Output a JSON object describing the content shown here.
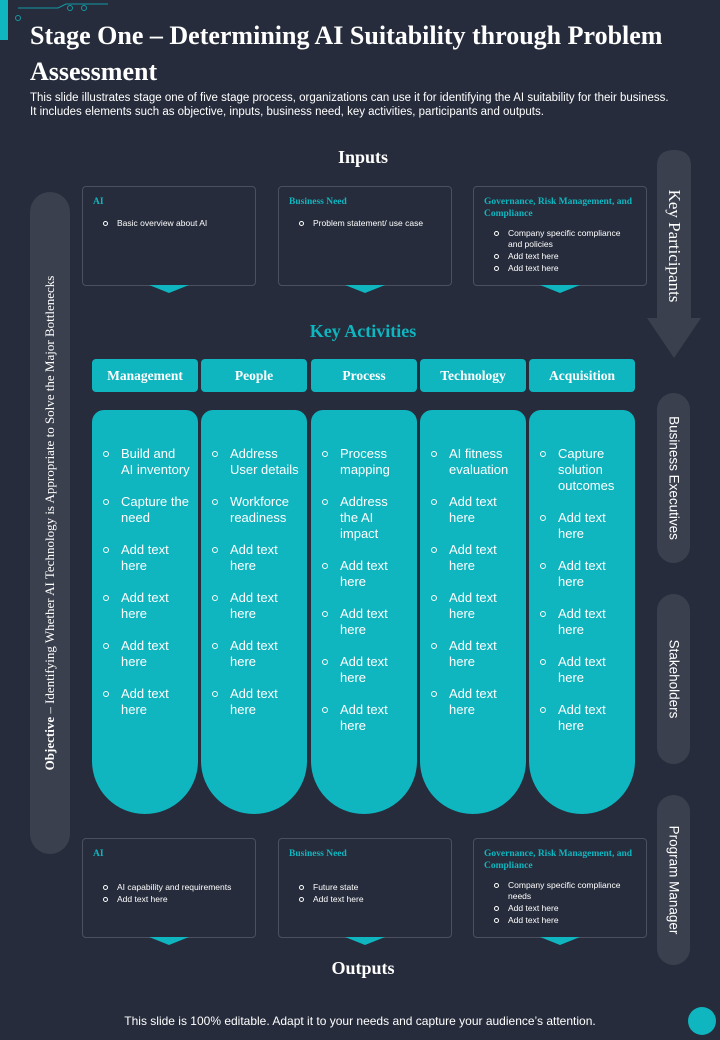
{
  "title": "Stage One – Determining AI Suitability through Problem Assessment",
  "subtitle": "This slide illustrates stage one of five stage process, organizations can use it for identifying the AI suitability for their business. It includes elements such as objective, inputs, business need, key activities, participants and outputs.",
  "objective": {
    "label": "Objective",
    "text": " – Identifying Whether AI Technology is Appropriate to Solve the Major Bottlenecks"
  },
  "inputs": {
    "heading": "Inputs",
    "cards": [
      {
        "title": "AI",
        "items": [
          "Basic overview about AI"
        ]
      },
      {
        "title": "Business Need",
        "items": [
          "Problem statement/ use case"
        ]
      },
      {
        "title": "Governance, Risk Management, and Compliance",
        "items": [
          "Company specific compliance and policies",
          "Add text here",
          "Add text here"
        ]
      }
    ]
  },
  "key_activities": {
    "heading": "Key Activities",
    "columns": [
      {
        "label": "Management",
        "items": [
          "Build and AI inventory",
          "Capture the need",
          "Add text here",
          "Add text here",
          "Add text here",
          "Add text here"
        ]
      },
      {
        "label": "People",
        "items": [
          "Address User details",
          "Workforce readiness",
          "Add text here",
          "Add text here",
          "Add text here",
          "Add text here"
        ]
      },
      {
        "label": "Process",
        "items": [
          "Process mapping",
          "Address the AI impact",
          "Add text here",
          "Add text here",
          "Add text here",
          "Add text here"
        ]
      },
      {
        "label": "Technology",
        "items": [
          "AI fitness evaluation",
          "Add text here",
          "Add text here",
          "Add text here",
          "Add text here",
          "Add text here"
        ]
      },
      {
        "label": "Acquisition",
        "items": [
          "Capture solution outcomes",
          "Add text here",
          "Add text here",
          "Add text here",
          "Add text here",
          "Add text here"
        ]
      }
    ]
  },
  "outputs": {
    "heading": "Outputs",
    "cards": [
      {
        "title": "AI",
        "items": [
          "AI capability and requirements",
          "Add text here"
        ]
      },
      {
        "title": "Business Need",
        "items": [
          "Future state",
          "Add text here"
        ]
      },
      {
        "title": "Governance, Risk Management, and Compliance",
        "items": [
          "Company specific compliance needs",
          "Add text here",
          "Add text here"
        ]
      }
    ]
  },
  "key_participants": {
    "label": "Key Participants",
    "participants": [
      "Business Executives",
      "Stakeholders",
      "Program Manager"
    ]
  },
  "footer": "This slide is 100% editable. Adapt it to your needs and capture your audience’s attention.",
  "colors": {
    "background": "#262c3b",
    "accent": "#0fb5bf",
    "panel": "#3a404d"
  }
}
